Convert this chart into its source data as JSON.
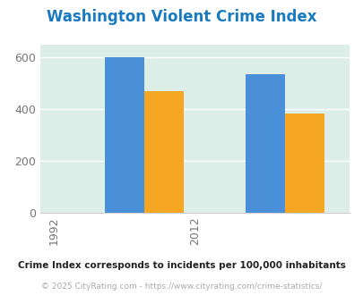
{
  "title": "Washington Violent Crime Index",
  "title_color": "#1a7abf",
  "years": [
    "1992",
    "2012"
  ],
  "series": {
    "Washington": {
      "values": [
        0,
        0
      ],
      "color": "#8dc63f"
    },
    "Louisiana": {
      "values": [
        600,
        535
      ],
      "color": "#4a90d9"
    },
    "National": {
      "values": [
        470,
        383
      ],
      "color": "#f5a623"
    }
  },
  "ylim": [
    0,
    650
  ],
  "yticks": [
    0,
    200,
    400,
    600
  ],
  "plot_bg": "#ddeee9",
  "grid_color": "#ffffff",
  "footnote1": "Crime Index corresponds to incidents per 100,000 inhabitants",
  "footnote2": "© 2025 CityRating.com - https://www.cityrating.com/crime-statistics/",
  "footnote1_color": "#222222",
  "footnote2_color": "#aaaaaa",
  "bar_width": 0.28
}
